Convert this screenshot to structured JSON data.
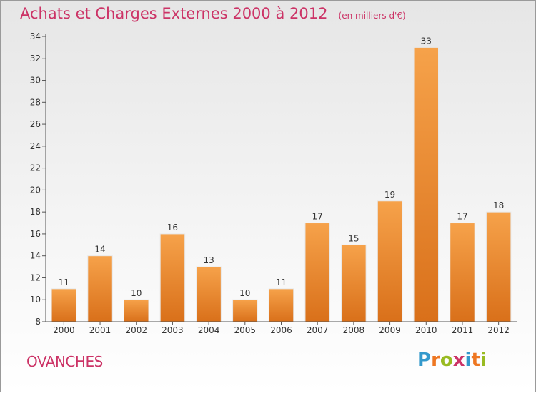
{
  "chart_data": {
    "type": "bar",
    "title": "Achats et Charges Externes 2000 à 2012",
    "subtitle": "(en milliers d'€)",
    "categories": [
      "2000",
      "2001",
      "2002",
      "2003",
      "2004",
      "2005",
      "2006",
      "2007",
      "2008",
      "2009",
      "2010",
      "2011",
      "2012"
    ],
    "values": [
      11,
      14,
      10,
      16,
      13,
      10,
      11,
      17,
      15,
      19,
      33,
      17,
      18
    ],
    "ylim": [
      8,
      34
    ],
    "yticks": [
      8,
      10,
      12,
      14,
      16,
      18,
      20,
      22,
      24,
      26,
      28,
      30,
      32,
      34
    ],
    "grid": false,
    "bar_color": "#f08a24",
    "data_labels": true
  },
  "location": "OVANCHES",
  "logo": {
    "text": "Proxiti",
    "letters": [
      "P",
      "r",
      "o",
      "x",
      "i",
      "t",
      "i"
    ],
    "colors": [
      "#3399cc",
      "#ee7722",
      "#99bb22",
      "#cc3366",
      "#3399cc",
      "#ee7722",
      "#99bb22"
    ]
  },
  "colors": {
    "accent": "#cc3366",
    "bar": "#f08a24"
  }
}
